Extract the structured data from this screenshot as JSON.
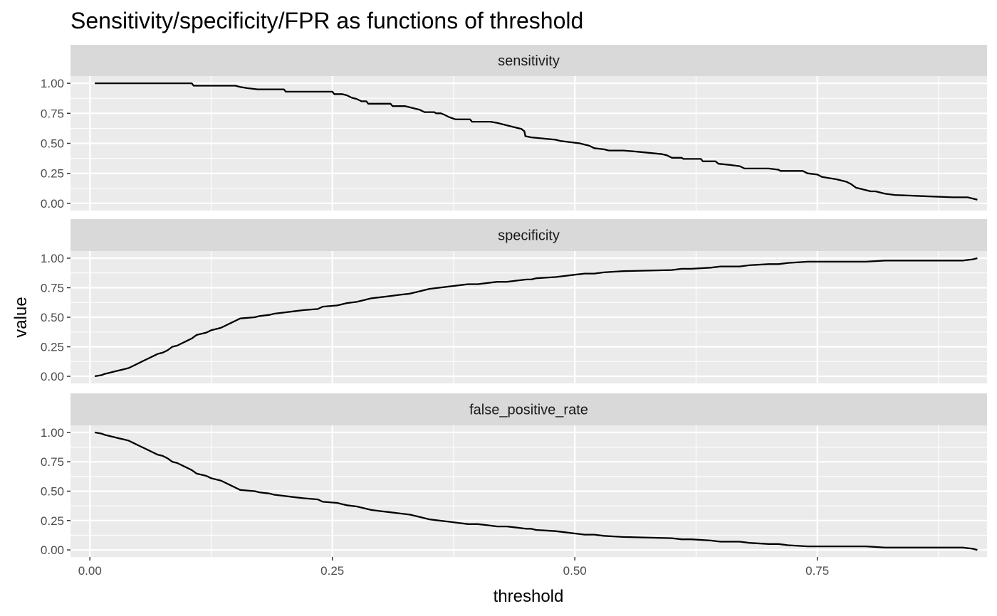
{
  "colors": {
    "panel_bg": "#ebebeb",
    "strip_bg": "#d9d9d9",
    "grid": "#ffffff",
    "line": "#000000",
    "tick_text": "#4d4d4d",
    "tick_mark": "#333333"
  },
  "chart_data": {
    "type": "line",
    "title": "Sensitivity/specificity/FPR as functions of threshold",
    "xlabel": "threshold",
    "ylabel": "value",
    "xlim": [
      -0.02,
      0.925
    ],
    "ylim": [
      -0.06,
      1.06
    ],
    "x_ticks": [
      0.0,
      0.25,
      0.5,
      0.75
    ],
    "x_tick_labels": [
      "0.00",
      "0.25",
      "0.50",
      "0.75"
    ],
    "y_ticks": [
      0.0,
      0.25,
      0.5,
      0.75,
      1.0
    ],
    "y_tick_labels": [
      "0.00",
      "0.25",
      "0.50",
      "0.75",
      "1.00"
    ],
    "grid": true,
    "facets": [
      {
        "name": "sensitivity",
        "x": [
          0.005,
          0.105,
          0.107,
          0.15,
          0.155,
          0.162,
          0.173,
          0.2,
          0.202,
          0.25,
          0.252,
          0.26,
          0.265,
          0.27,
          0.275,
          0.28,
          0.285,
          0.287,
          0.31,
          0.312,
          0.325,
          0.33,
          0.335,
          0.34,
          0.345,
          0.355,
          0.357,
          0.362,
          0.365,
          0.37,
          0.377,
          0.392,
          0.394,
          0.413,
          0.42,
          0.425,
          0.43,
          0.44,
          0.445,
          0.448,
          0.449,
          0.455,
          0.48,
          0.485,
          0.505,
          0.51,
          0.515,
          0.52,
          0.53,
          0.535,
          0.55,
          0.565,
          0.59,
          0.595,
          0.6,
          0.61,
          0.612,
          0.63,
          0.632,
          0.645,
          0.648,
          0.66,
          0.67,
          0.675,
          0.7,
          0.71,
          0.712,
          0.735,
          0.74,
          0.75,
          0.755,
          0.77,
          0.78,
          0.785,
          0.79,
          0.8,
          0.805,
          0.81,
          0.82,
          0.83,
          0.86,
          0.89,
          0.905,
          0.915
        ],
        "y": [
          1.0,
          1.0,
          0.98,
          0.98,
          0.97,
          0.96,
          0.95,
          0.95,
          0.93,
          0.93,
          0.91,
          0.91,
          0.9,
          0.88,
          0.87,
          0.85,
          0.85,
          0.83,
          0.83,
          0.81,
          0.81,
          0.8,
          0.79,
          0.78,
          0.76,
          0.76,
          0.75,
          0.75,
          0.74,
          0.72,
          0.7,
          0.7,
          0.68,
          0.68,
          0.67,
          0.66,
          0.65,
          0.63,
          0.62,
          0.6,
          0.56,
          0.55,
          0.53,
          0.52,
          0.5,
          0.49,
          0.48,
          0.46,
          0.45,
          0.44,
          0.44,
          0.43,
          0.41,
          0.4,
          0.38,
          0.38,
          0.37,
          0.37,
          0.35,
          0.35,
          0.33,
          0.32,
          0.31,
          0.29,
          0.29,
          0.28,
          0.27,
          0.27,
          0.25,
          0.24,
          0.22,
          0.2,
          0.18,
          0.16,
          0.13,
          0.11,
          0.1,
          0.1,
          0.08,
          0.07,
          0.06,
          0.05,
          0.05,
          0.03
        ]
      },
      {
        "name": "specificity",
        "x": [
          0.005,
          0.012,
          0.015,
          0.02,
          0.025,
          0.03,
          0.035,
          0.04,
          0.045,
          0.05,
          0.055,
          0.06,
          0.065,
          0.07,
          0.075,
          0.08,
          0.085,
          0.09,
          0.095,
          0.1,
          0.105,
          0.11,
          0.12,
          0.125,
          0.13,
          0.135,
          0.14,
          0.145,
          0.15,
          0.155,
          0.17,
          0.175,
          0.185,
          0.19,
          0.2,
          0.21,
          0.22,
          0.235,
          0.24,
          0.255,
          0.26,
          0.265,
          0.275,
          0.28,
          0.29,
          0.3,
          0.31,
          0.32,
          0.33,
          0.34,
          0.35,
          0.36,
          0.37,
          0.38,
          0.39,
          0.4,
          0.41,
          0.42,
          0.43,
          0.44,
          0.45,
          0.455,
          0.46,
          0.48,
          0.49,
          0.5,
          0.51,
          0.52,
          0.53,
          0.55,
          0.6,
          0.61,
          0.62,
          0.64,
          0.65,
          0.67,
          0.68,
          0.7,
          0.71,
          0.72,
          0.74,
          0.8,
          0.82,
          0.9,
          0.91,
          0.915
        ],
        "y": [
          0.0,
          0.01,
          0.02,
          0.03,
          0.04,
          0.05,
          0.06,
          0.07,
          0.09,
          0.11,
          0.13,
          0.15,
          0.17,
          0.19,
          0.2,
          0.22,
          0.25,
          0.26,
          0.28,
          0.3,
          0.32,
          0.35,
          0.37,
          0.39,
          0.4,
          0.41,
          0.43,
          0.45,
          0.47,
          0.49,
          0.5,
          0.51,
          0.52,
          0.53,
          0.54,
          0.55,
          0.56,
          0.57,
          0.59,
          0.6,
          0.61,
          0.62,
          0.63,
          0.64,
          0.66,
          0.67,
          0.68,
          0.69,
          0.7,
          0.72,
          0.74,
          0.75,
          0.76,
          0.77,
          0.78,
          0.78,
          0.79,
          0.8,
          0.8,
          0.81,
          0.82,
          0.82,
          0.83,
          0.84,
          0.85,
          0.86,
          0.87,
          0.87,
          0.88,
          0.89,
          0.9,
          0.91,
          0.91,
          0.92,
          0.93,
          0.93,
          0.94,
          0.95,
          0.95,
          0.96,
          0.97,
          0.97,
          0.98,
          0.98,
          0.99,
          1.0
        ]
      },
      {
        "name": "false_positive_rate",
        "x": [
          0.005,
          0.012,
          0.015,
          0.02,
          0.025,
          0.03,
          0.035,
          0.04,
          0.045,
          0.05,
          0.055,
          0.06,
          0.065,
          0.07,
          0.075,
          0.08,
          0.085,
          0.09,
          0.095,
          0.1,
          0.105,
          0.11,
          0.12,
          0.125,
          0.13,
          0.135,
          0.14,
          0.145,
          0.15,
          0.155,
          0.17,
          0.175,
          0.185,
          0.19,
          0.2,
          0.21,
          0.22,
          0.235,
          0.24,
          0.255,
          0.26,
          0.265,
          0.275,
          0.28,
          0.29,
          0.3,
          0.31,
          0.32,
          0.33,
          0.34,
          0.35,
          0.36,
          0.37,
          0.38,
          0.39,
          0.4,
          0.41,
          0.42,
          0.43,
          0.44,
          0.45,
          0.455,
          0.46,
          0.48,
          0.49,
          0.5,
          0.51,
          0.52,
          0.53,
          0.55,
          0.6,
          0.61,
          0.62,
          0.64,
          0.65,
          0.67,
          0.68,
          0.7,
          0.71,
          0.72,
          0.74,
          0.8,
          0.82,
          0.9,
          0.91,
          0.915
        ],
        "y": [
          1.0,
          0.99,
          0.98,
          0.97,
          0.96,
          0.95,
          0.94,
          0.93,
          0.91,
          0.89,
          0.87,
          0.85,
          0.83,
          0.81,
          0.8,
          0.78,
          0.75,
          0.74,
          0.72,
          0.7,
          0.68,
          0.65,
          0.63,
          0.61,
          0.6,
          0.59,
          0.57,
          0.55,
          0.53,
          0.51,
          0.5,
          0.49,
          0.48,
          0.47,
          0.46,
          0.45,
          0.44,
          0.43,
          0.41,
          0.4,
          0.39,
          0.38,
          0.37,
          0.36,
          0.34,
          0.33,
          0.32,
          0.31,
          0.3,
          0.28,
          0.26,
          0.25,
          0.24,
          0.23,
          0.22,
          0.22,
          0.21,
          0.2,
          0.2,
          0.19,
          0.18,
          0.18,
          0.17,
          0.16,
          0.15,
          0.14,
          0.13,
          0.13,
          0.12,
          0.11,
          0.1,
          0.09,
          0.09,
          0.08,
          0.07,
          0.07,
          0.06,
          0.05,
          0.05,
          0.04,
          0.03,
          0.03,
          0.02,
          0.02,
          0.01,
          0.0
        ]
      }
    ]
  }
}
